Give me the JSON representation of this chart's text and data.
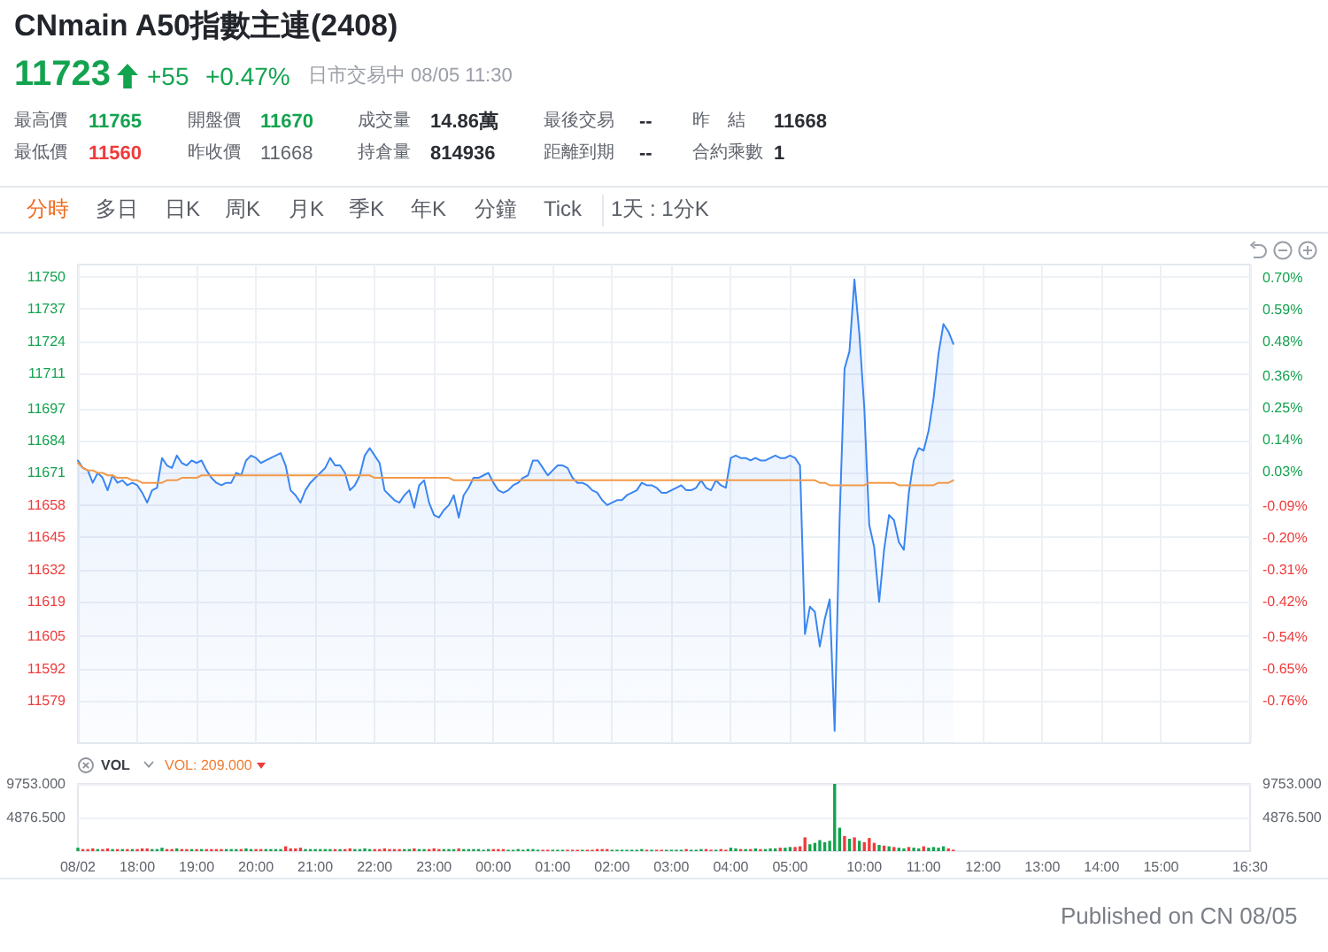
{
  "chart_data": [
    {
      "type": "area",
      "title": "CNmain A50指數主連(2408)",
      "annotations": [
        "11723",
        "+55",
        "+0.47%",
        "日市交易中 08/05 11:30",
        "最高價",
        "11765",
        "開盤價",
        "11670",
        "成交量",
        "14.86萬",
        "最後交易",
        "--",
        "昨　結",
        "11668",
        "最低價",
        "11560",
        "昨收價",
        "11668",
        "持倉量",
        "814936",
        "距離到期",
        "--",
        "合約乘數",
        "1",
        "分時",
        "多日",
        "日K",
        "周K",
        "月K",
        "季K",
        "年K",
        "分鐘",
        "Tick",
        "1天 : 1分K"
      ],
      "categories": [
        null,
        null,
        null,
        null,
        null,
        null,
        null,
        null,
        null,
        null,
        null,
        null,
        null,
        null,
        null,
        null,
        null,
        null,
        null,
        null,
        null,
        null,
        null,
        null,
        null,
        null,
        null,
        null,
        null,
        null,
        null,
        null,
        null,
        null,
        null,
        null,
        null,
        null,
        null,
        null,
        null,
        null,
        null,
        null,
        null,
        null,
        null,
        null,
        null,
        null,
        null,
        null,
        null,
        null,
        null,
        null,
        null,
        null,
        null,
        null,
        null,
        null,
        null,
        null,
        null,
        null,
        null,
        null,
        null,
        null,
        null,
        null,
        null,
        null,
        null,
        null,
        null,
        null,
        null,
        null,
        null,
        null,
        null,
        null,
        null,
        null,
        null,
        null,
        null,
        null,
        null,
        null,
        null,
        null,
        null,
        null,
        null,
        null,
        null,
        null,
        null,
        null,
        null,
        null,
        null,
        null,
        null,
        null,
        null,
        null,
        null,
        null,
        null,
        null,
        null,
        null,
        null,
        null,
        null,
        null,
        null,
        null,
        null,
        null,
        null,
        null,
        null,
        null,
        null,
        null,
        null,
        null,
        null,
        null,
        null,
        null,
        null,
        null,
        null,
        null,
        null,
        null,
        null,
        null,
        null,
        null,
        null,
        null,
        null,
        null,
        null,
        null,
        null,
        null,
        null,
        null,
        null,
        null,
        null,
        null,
        null,
        null,
        null,
        null,
        null,
        null,
        null,
        null,
        null,
        null,
        null,
        null,
        null,
        null,
        null,
        null,
        null,
        null
      ],
      "series": [
        {
          "color": "#3a86f2",
          "values": [
            11676,
            11673,
            11672,
            11667,
            11671,
            11669,
            11664,
            11670,
            11667,
            11668,
            11666,
            11667,
            11666,
            11663,
            11659,
            11664,
            11665,
            11677,
            11674,
            11673,
            11678,
            11675,
            11674,
            11676,
            11675,
            11676,
            11672,
            11669,
            11667,
            11666,
            11667,
            11667,
            11671,
            11670,
            11676,
            11678,
            11677,
            11675,
            11676,
            11677,
            11678,
            11679,
            11674,
            11664,
            11662,
            11659,
            11664,
            11667,
            11669,
            11671,
            11673,
            11677,
            11674,
            11674,
            11671,
            11664,
            11666,
            11670,
            11678,
            11681,
            11678,
            11675,
            11664,
            11662,
            11660,
            11659,
            11662,
            11664,
            11657,
            11666,
            11668,
            11659,
            11654,
            11653,
            11656,
            11658,
            11662,
            11653,
            11662,
            11665,
            11669,
            11669,
            11670,
            11671,
            11667,
            11664,
            11663,
            11664,
            11666,
            11667,
            11669,
            11670,
            11676,
            11676,
            11673,
            11670,
            11672,
            11674,
            11674,
            11673,
            11669,
            11667,
            11667,
            11666,
            11664,
            11663,
            11660,
            11658,
            11659,
            11660,
            11660,
            11662,
            11663,
            11664,
            11667,
            11666,
            11666,
            11665,
            11663,
            11663,
            11664,
            11665,
            11666,
            11664,
            11664,
            11665,
            11668,
            11665,
            11664,
            11668,
            11666,
            11665,
            11677,
            11678,
            11677,
            11677,
            11676,
            11677,
            11676,
            11676,
            11677,
            11678,
            11677,
            11677,
            11678,
            11677,
            11674,
            11606,
            11617,
            11615,
            11601,
            11612,
            11620,
            11567,
            11652,
            11713,
            11720,
            11749,
            11727,
            11697,
            11650,
            11641,
            11619,
            11640,
            11654,
            11652,
            11643,
            11640,
            11663,
            11676,
            11681,
            11680,
            11688,
            11701,
            11719,
            11731,
            11728,
            11723
          ]
        },
        {
          "type": "line",
          "color": "#f2994a",
          "values": [
            11675,
            11673,
            11672,
            11672,
            11671,
            11671,
            11670,
            11670,
            11669,
            11669,
            11669,
            11668,
            11668,
            11667,
            11667,
            11667,
            11667,
            11667,
            11668,
            11668,
            11668,
            11669,
            11669,
            11669,
            11669,
            11670,
            11670,
            11670,
            11670,
            11670,
            11670,
            11670,
            11670,
            11670,
            11670,
            11670,
            11670,
            11670,
            11670,
            11670,
            11670,
            11670,
            11670,
            11670,
            11670,
            11670,
            11670,
            11670,
            11670,
            11670,
            11670,
            11670,
            11670,
            11670,
            11670,
            11670,
            11670,
            11670,
            11670,
            11670,
            11669,
            11669,
            11669,
            11669,
            11669,
            11669,
            11669,
            11669,
            11669,
            11669,
            11669,
            11669,
            11669,
            11669,
            11669,
            11669,
            11668,
            11668,
            11668,
            11668,
            11668,
            11668,
            11668,
            11668,
            11668,
            11668,
            11668,
            11668,
            11668,
            11668,
            11668,
            11668,
            11668,
            11668,
            11668,
            11668,
            11668,
            11668,
            11668,
            11668,
            11668,
            11668,
            11668,
            11668,
            11668,
            11668,
            11668,
            11668,
            11668,
            11668,
            11668,
            11668,
            11668,
            11668,
            11668,
            11668,
            11668,
            11668,
            11668,
            11668,
            11668,
            11668,
            11668,
            11668,
            11668,
            11668,
            11668,
            11668,
            11668,
            11668,
            11668,
            11668,
            11668,
            11668,
            11668,
            11668,
            11668,
            11668,
            11668,
            11668,
            11668,
            11668,
            11668,
            11668,
            11668,
            11668,
            11668,
            11668,
            11668,
            11668,
            11667,
            11667,
            11666,
            11666,
            11666,
            11666,
            11666,
            11666,
            11666,
            11666,
            11667,
            11667,
            11667,
            11667,
            11667,
            11667,
            11666,
            11666,
            11666,
            11666,
            11666,
            11666,
            11666,
            11666,
            11667,
            11667,
            11667,
            11668
          ]
        }
      ],
      "ylim": [
        11562,
        11755
      ],
      "yticks": [
        11579,
        11592,
        11605,
        11619,
        11632,
        11645,
        11658,
        11671,
        11684,
        11697,
        11711,
        11724,
        11737,
        11750
      ],
      "y2lim": [
        -0.908,
        0.746
      ],
      "y2ticks": [
        {
          "value": -0.76,
          "label": "-0.76%"
        },
        {
          "value": -0.65,
          "label": "-0.65%"
        },
        {
          "value": -0.54,
          "label": "-0.54%"
        },
        {
          "value": -0.42,
          "label": "-0.42%"
        },
        {
          "value": -0.31,
          "label": "-0.31%"
        },
        {
          "value": -0.2,
          "label": "-0.20%"
        },
        {
          "value": -0.09,
          "label": "-0.09%"
        },
        {
          "value": 0.03,
          "label": "0.03%"
        },
        {
          "value": 0.14,
          "label": "0.14%"
        },
        {
          "value": 0.25,
          "label": "0.25%"
        },
        {
          "value": 0.36,
          "label": "0.36%"
        },
        {
          "value": 0.48,
          "label": "0.48%"
        },
        {
          "value": 0.59,
          "label": "0.59%"
        },
        {
          "value": 0.7,
          "label": "0.70%"
        }
      ],
      "grid": true
    },
    {
      "type": "bar",
      "annotations": [
        "VOL",
        "VOL: 209.000",
        "Published on CN 08/05"
      ],
      "categories": [
        "08/02",
        null,
        null,
        null,
        null,
        null,
        null,
        null,
        null,
        null,
        null,
        null,
        "18:00",
        null,
        null,
        null,
        null,
        null,
        null,
        null,
        null,
        null,
        null,
        null,
        "19:00",
        null,
        null,
        null,
        null,
        null,
        null,
        null,
        null,
        null,
        null,
        null,
        "20:00",
        null,
        null,
        null,
        null,
        null,
        null,
        null,
        null,
        null,
        null,
        null,
        "21:00",
        null,
        null,
        null,
        null,
        null,
        null,
        null,
        null,
        null,
        null,
        null,
        "22:00",
        null,
        null,
        null,
        null,
        null,
        null,
        null,
        null,
        null,
        null,
        null,
        "23:00",
        null,
        null,
        null,
        null,
        null,
        null,
        null,
        null,
        null,
        null,
        null,
        "00:00",
        null,
        null,
        null,
        null,
        null,
        null,
        null,
        null,
        null,
        null,
        null,
        "01:00",
        null,
        null,
        null,
        null,
        null,
        null,
        null,
        null,
        null,
        null,
        null,
        "02:00",
        null,
        null,
        null,
        null,
        null,
        null,
        null,
        null,
        null,
        null,
        null,
        "03:00",
        null,
        null,
        null,
        null,
        null,
        null,
        null,
        null,
        null,
        null,
        null,
        "04:00",
        null,
        null,
        null,
        null,
        null,
        null,
        null,
        null,
        null,
        null,
        null,
        "05:00",
        null,
        null,
        null,
        null,
        null,
        null,
        null,
        null,
        null,
        null,
        null,
        null,
        null,
        null,
        "10:00",
        null,
        null,
        null,
        null,
        null,
        null,
        null,
        null,
        null,
        null,
        null,
        "11:00",
        null,
        null,
        null,
        null,
        null,
        null,
        null,
        null,
        null,
        null,
        null,
        "12:00",
        null,
        null,
        null,
        null,
        null,
        null,
        null,
        null,
        null,
        null,
        null,
        "13:00",
        null,
        null,
        null,
        null,
        null,
        null,
        null,
        null,
        null,
        null,
        null,
        "14:00",
        null,
        null,
        null,
        null,
        null,
        null,
        null,
        null,
        null,
        null,
        null,
        "15:00",
        null,
        null,
        null,
        null,
        null,
        null,
        null,
        null,
        null,
        null,
        null,
        null,
        null,
        null,
        null,
        null,
        null,
        "16:30"
      ],
      "values": [
        500,
        300,
        300,
        400,
        300,
        300,
        400,
        300,
        300,
        300,
        300,
        300,
        300,
        400,
        400,
        300,
        300,
        500,
        300,
        300,
        400,
        300,
        300,
        300,
        300,
        300,
        300,
        300,
        300,
        300,
        300,
        300,
        300,
        300,
        400,
        300,
        300,
        300,
        300,
        300,
        300,
        300,
        700,
        400,
        400,
        500,
        300,
        300,
        300,
        300,
        300,
        300,
        300,
        300,
        300,
        400,
        300,
        300,
        400,
        300,
        300,
        300,
        400,
        300,
        300,
        300,
        300,
        300,
        400,
        300,
        300,
        300,
        400,
        300,
        300,
        300,
        300,
        400,
        300,
        300,
        300,
        300,
        200,
        300,
        300,
        300,
        300,
        200,
        200,
        300,
        200,
        300,
        300,
        200,
        200,
        200,
        200,
        200,
        200,
        200,
        200,
        200,
        200,
        200,
        200,
        300,
        300,
        300,
        200,
        200,
        200,
        200,
        200,
        200,
        300,
        200,
        200,
        200,
        200,
        200,
        200,
        200,
        200,
        300,
        200,
        200,
        300,
        300,
        200,
        200,
        300,
        200,
        500,
        400,
        300,
        300,
        300,
        400,
        300,
        300,
        400,
        400,
        500,
        500,
        600,
        600,
        700,
        2000,
        1000,
        1200,
        1600,
        1300,
        1500,
        9753,
        3400,
        2200,
        1800,
        2000,
        1500,
        1300,
        1900,
        1200,
        900,
        800,
        700,
        600,
        500,
        400,
        600,
        500,
        400,
        700,
        500,
        600,
        500,
        700,
        400,
        209,
        null,
        null,
        null,
        null,
        null,
        null,
        null,
        null,
        null,
        null,
        null,
        null,
        null,
        null,
        null,
        null,
        null,
        null,
        null,
        null,
        null,
        null,
        null,
        null,
        null,
        null,
        null,
        null,
        null,
        null,
        null,
        null,
        null,
        null,
        null,
        null,
        null,
        null,
        null,
        null,
        null,
        null,
        null,
        null,
        null,
        null,
        null,
        null,
        null,
        null,
        null,
        null,
        null,
        null,
        null,
        null,
        null,
        null,
        null,
        null
      ],
      "colors": [
        "#13a34f",
        "#ef3b3b",
        "#ef3b3b",
        "#ef3b3b",
        "#13a34f",
        "#ef3b3b",
        "#ef3b3b",
        "#13a34f",
        "#ef3b3b",
        "#13a34f",
        "#ef3b3b",
        "#13a34f",
        "#ef3b3b",
        "#ef3b3b",
        "#ef3b3b",
        "#13a34f",
        "#13a34f",
        "#13a34f",
        "#ef3b3b",
        "#ef3b3b",
        "#13a34f",
        "#ef3b3b",
        "#ef3b3b",
        "#13a34f",
        "#ef3b3b",
        "#13a34f",
        "#ef3b3b",
        "#ef3b3b",
        "#ef3b3b",
        "#ef3b3b",
        "#13a34f",
        "#13a34f",
        "#13a34f",
        "#ef3b3b",
        "#13a34f",
        "#13a34f",
        "#ef3b3b",
        "#ef3b3b",
        "#13a34f",
        "#13a34f",
        "#13a34f",
        "#13a34f",
        "#ef3b3b",
        "#ef3b3b",
        "#ef3b3b",
        "#ef3b3b",
        "#13a34f",
        "#13a34f",
        "#13a34f",
        "#13a34f",
        "#13a34f",
        "#13a34f",
        "#ef3b3b",
        "#13a34f",
        "#ef3b3b",
        "#ef3b3b",
        "#13a34f",
        "#13a34f",
        "#13a34f",
        "#13a34f",
        "#ef3b3b",
        "#ef3b3b",
        "#ef3b3b",
        "#ef3b3b",
        "#ef3b3b",
        "#ef3b3b",
        "#13a34f",
        "#13a34f",
        "#ef3b3b",
        "#13a34f",
        "#13a34f",
        "#ef3b3b",
        "#ef3b3b",
        "#ef3b3b",
        "#13a34f",
        "#13a34f",
        "#13a34f",
        "#ef3b3b",
        "#13a34f",
        "#13a34f",
        "#13a34f",
        "#13a34f",
        "#13a34f",
        "#13a34f",
        "#ef3b3b",
        "#ef3b3b",
        "#ef3b3b",
        "#13a34f",
        "#13a34f",
        "#13a34f",
        "#13a34f",
        "#13a34f",
        "#13a34f",
        "#13a34f",
        "#ef3b3b",
        "#ef3b3b",
        "#13a34f",
        "#13a34f",
        "#13a34f",
        "#ef3b3b",
        "#ef3b3b",
        "#ef3b3b",
        "#13a34f",
        "#ef3b3b",
        "#ef3b3b",
        "#ef3b3b",
        "#ef3b3b",
        "#ef3b3b",
        "#13a34f",
        "#13a34f",
        "#13a34f",
        "#13a34f",
        "#13a34f",
        "#13a34f",
        "#13a34f",
        "#ef3b3b",
        "#13a34f",
        "#ef3b3b",
        "#ef3b3b",
        "#13a34f",
        "#13a34f",
        "#13a34f",
        "#13a34f",
        "#ef3b3b",
        "#13a34f",
        "#13a34f",
        "#13a34f",
        "#ef3b3b",
        "#ef3b3b",
        "#13a34f",
        "#ef3b3b",
        "#ef3b3b",
        "#13a34f",
        "#13a34f",
        "#ef3b3b",
        "#13a34f",
        "#ef3b3b",
        "#13a34f",
        "#ef3b3b",
        "#13a34f",
        "#13a34f",
        "#13a34f",
        "#ef3b3b",
        "#13a34f",
        "#13a34f",
        "#ef3b3b",
        "#ef3b3b",
        "#ef3b3b",
        "#13a34f",
        "#13a34f",
        "#13a34f",
        "#13a34f",
        "#13a34f",
        "#13a34f",
        "#13a34f",
        "#ef3b3b",
        "#13a34f",
        "#ef3b3b",
        "#13a34f",
        "#ef3b3b",
        "#ef3b3b",
        "#ef3b3b",
        "#13a34f",
        "#ef3b3b",
        "#13a34f",
        "#ef3b3b",
        "#13a34f",
        "#13a34f",
        "#ef3b3b",
        "#13a34f",
        "#13a34f",
        "#ef3b3b",
        "#13a34f",
        "#13a34f",
        "#13a34f",
        "#13a34f",
        "#ef3b3b",
        "#ef3b3b",
        null,
        null,
        null,
        null,
        null,
        null,
        null,
        null,
        null,
        null,
        null,
        null,
        null,
        null,
        null,
        null,
        null,
        null,
        null,
        null,
        null,
        null,
        null,
        null,
        null,
        null,
        null,
        null,
        null,
        null,
        null,
        null,
        null,
        null,
        null,
        null,
        null,
        null,
        null,
        null,
        null,
        null,
        null,
        null,
        null,
        null,
        null,
        null,
        null,
        null,
        null,
        null,
        null,
        null,
        null,
        null,
        null,
        null,
        null,
        null
      ],
      "ylim": [
        0,
        9753
      ],
      "yticks": [
        {
          "value": 4876.5,
          "label": "4876.500"
        },
        {
          "value": 9753,
          "label": "9753.000"
        }
      ],
      "y2lim": [
        0,
        9753
      ],
      "y2ticks": [
        {
          "value": 4876.5,
          "label": "4876.500"
        },
        {
          "value": 9753,
          "label": "9753.000"
        }
      ],
      "grid": "y"
    }
  ]
}
